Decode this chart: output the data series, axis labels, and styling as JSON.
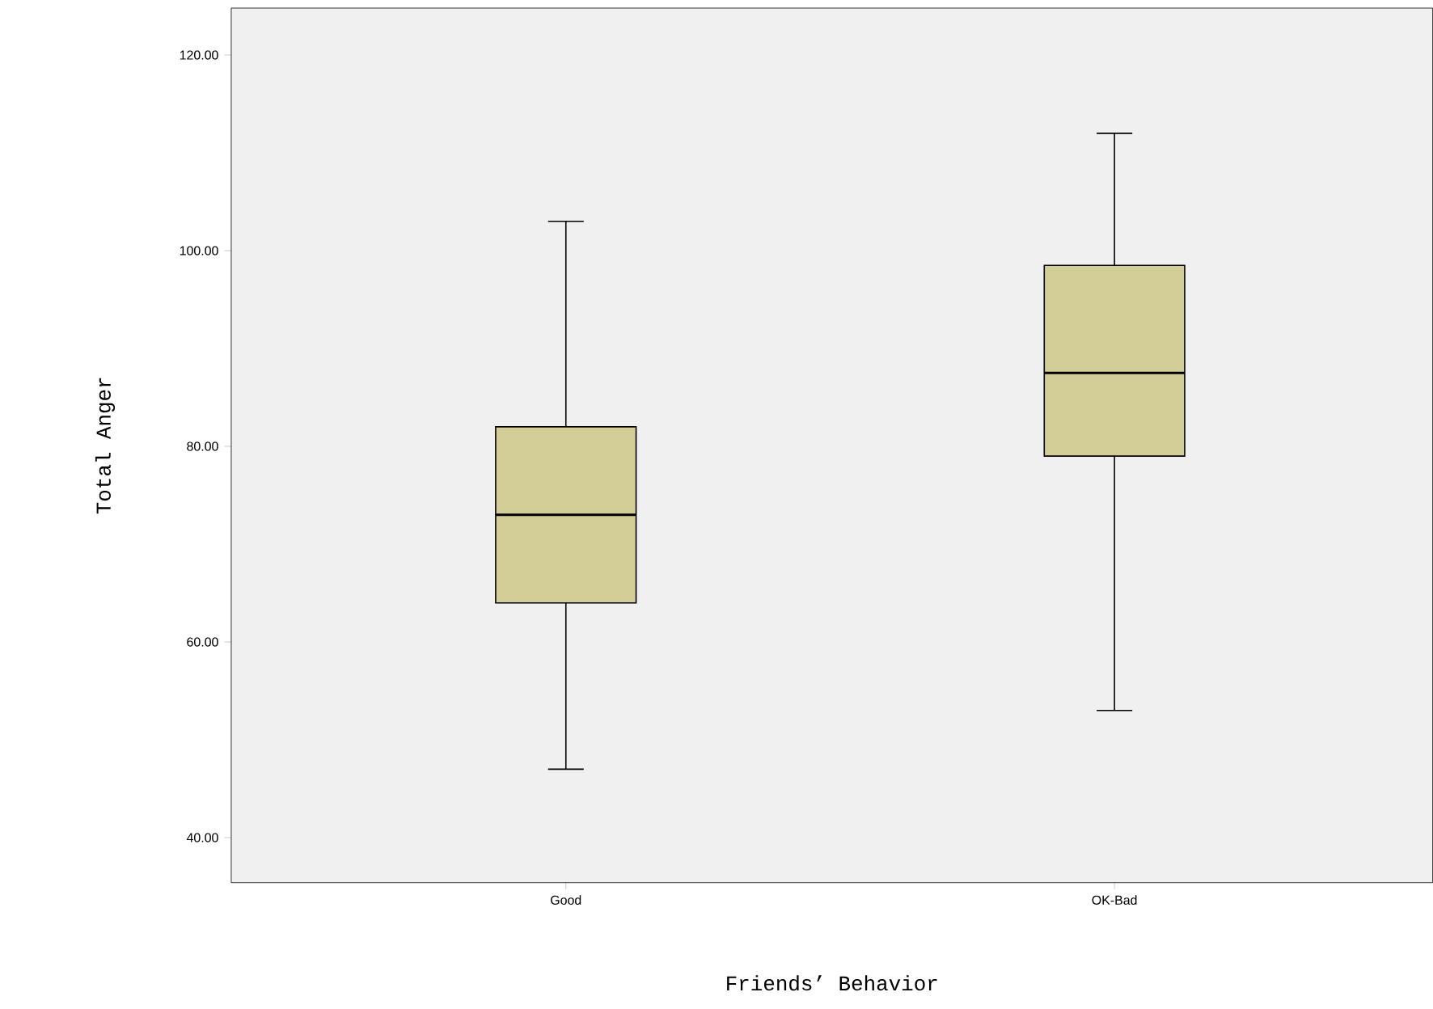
{
  "chart_data": {
    "type": "box",
    "xlabel": "Friends’ Behavior",
    "ylabel": "Total Anger",
    "categories": [
      "Good",
      "OK-Bad"
    ],
    "color": "#d3ce97",
    "boxes": [
      {
        "low": 47,
        "q1": 64,
        "median": 73,
        "q3": 82,
        "high": 103
      },
      {
        "low": 53,
        "q1": 79,
        "median": 87.5,
        "q3": 98.5,
        "high": 112
      }
    ],
    "ylim": [
      35.4,
      124.8
    ],
    "yticks": [
      {
        "value": 40,
        "label": "40.00"
      },
      {
        "value": 60,
        "label": "60.00"
      },
      {
        "value": 80,
        "label": "80.00"
      },
      {
        "value": 100,
        "label": "100.00"
      },
      {
        "value": 120,
        "label": "120.00"
      }
    ]
  }
}
